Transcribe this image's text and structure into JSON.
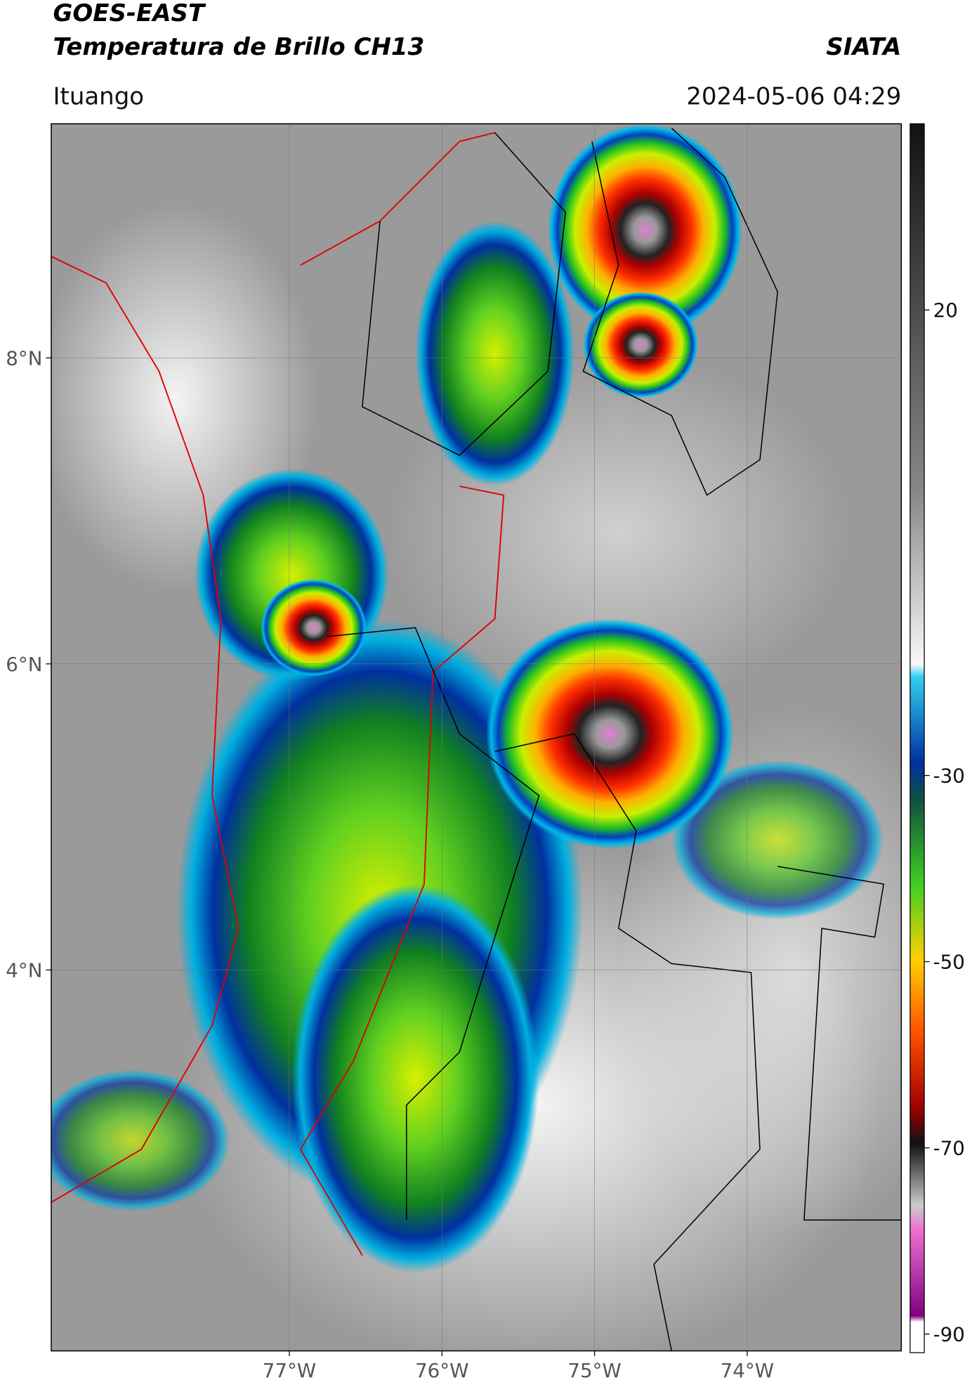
{
  "header": {
    "title_line1": "GOES-EAST",
    "title_line2": "Temperatura de Brillo CH13",
    "agency": "SIATA",
    "location": "Ituango",
    "datetime": "2024-05-06 04:29"
  },
  "map": {
    "lon_lim": [
      -78.56,
      -72.99
    ],
    "lat_lim": [
      1.51,
      9.53
    ],
    "grid": true,
    "lon_ticks": [
      {
        "value": -77,
        "label": "77°W"
      },
      {
        "value": -76,
        "label": "76°W"
      },
      {
        "value": -75,
        "label": "75°W"
      },
      {
        "value": -74,
        "label": "74°W"
      }
    ],
    "lat_ticks": [
      {
        "value": 8,
        "label": "8°N"
      },
      {
        "value": 6,
        "label": "6°N"
      },
      {
        "value": 4,
        "label": "4°N"
      }
    ]
  },
  "colorbar": {
    "lim": [
      -92,
      40
    ],
    "ticks": [
      20,
      -30,
      -50,
      -70,
      -90
    ]
  }
}
